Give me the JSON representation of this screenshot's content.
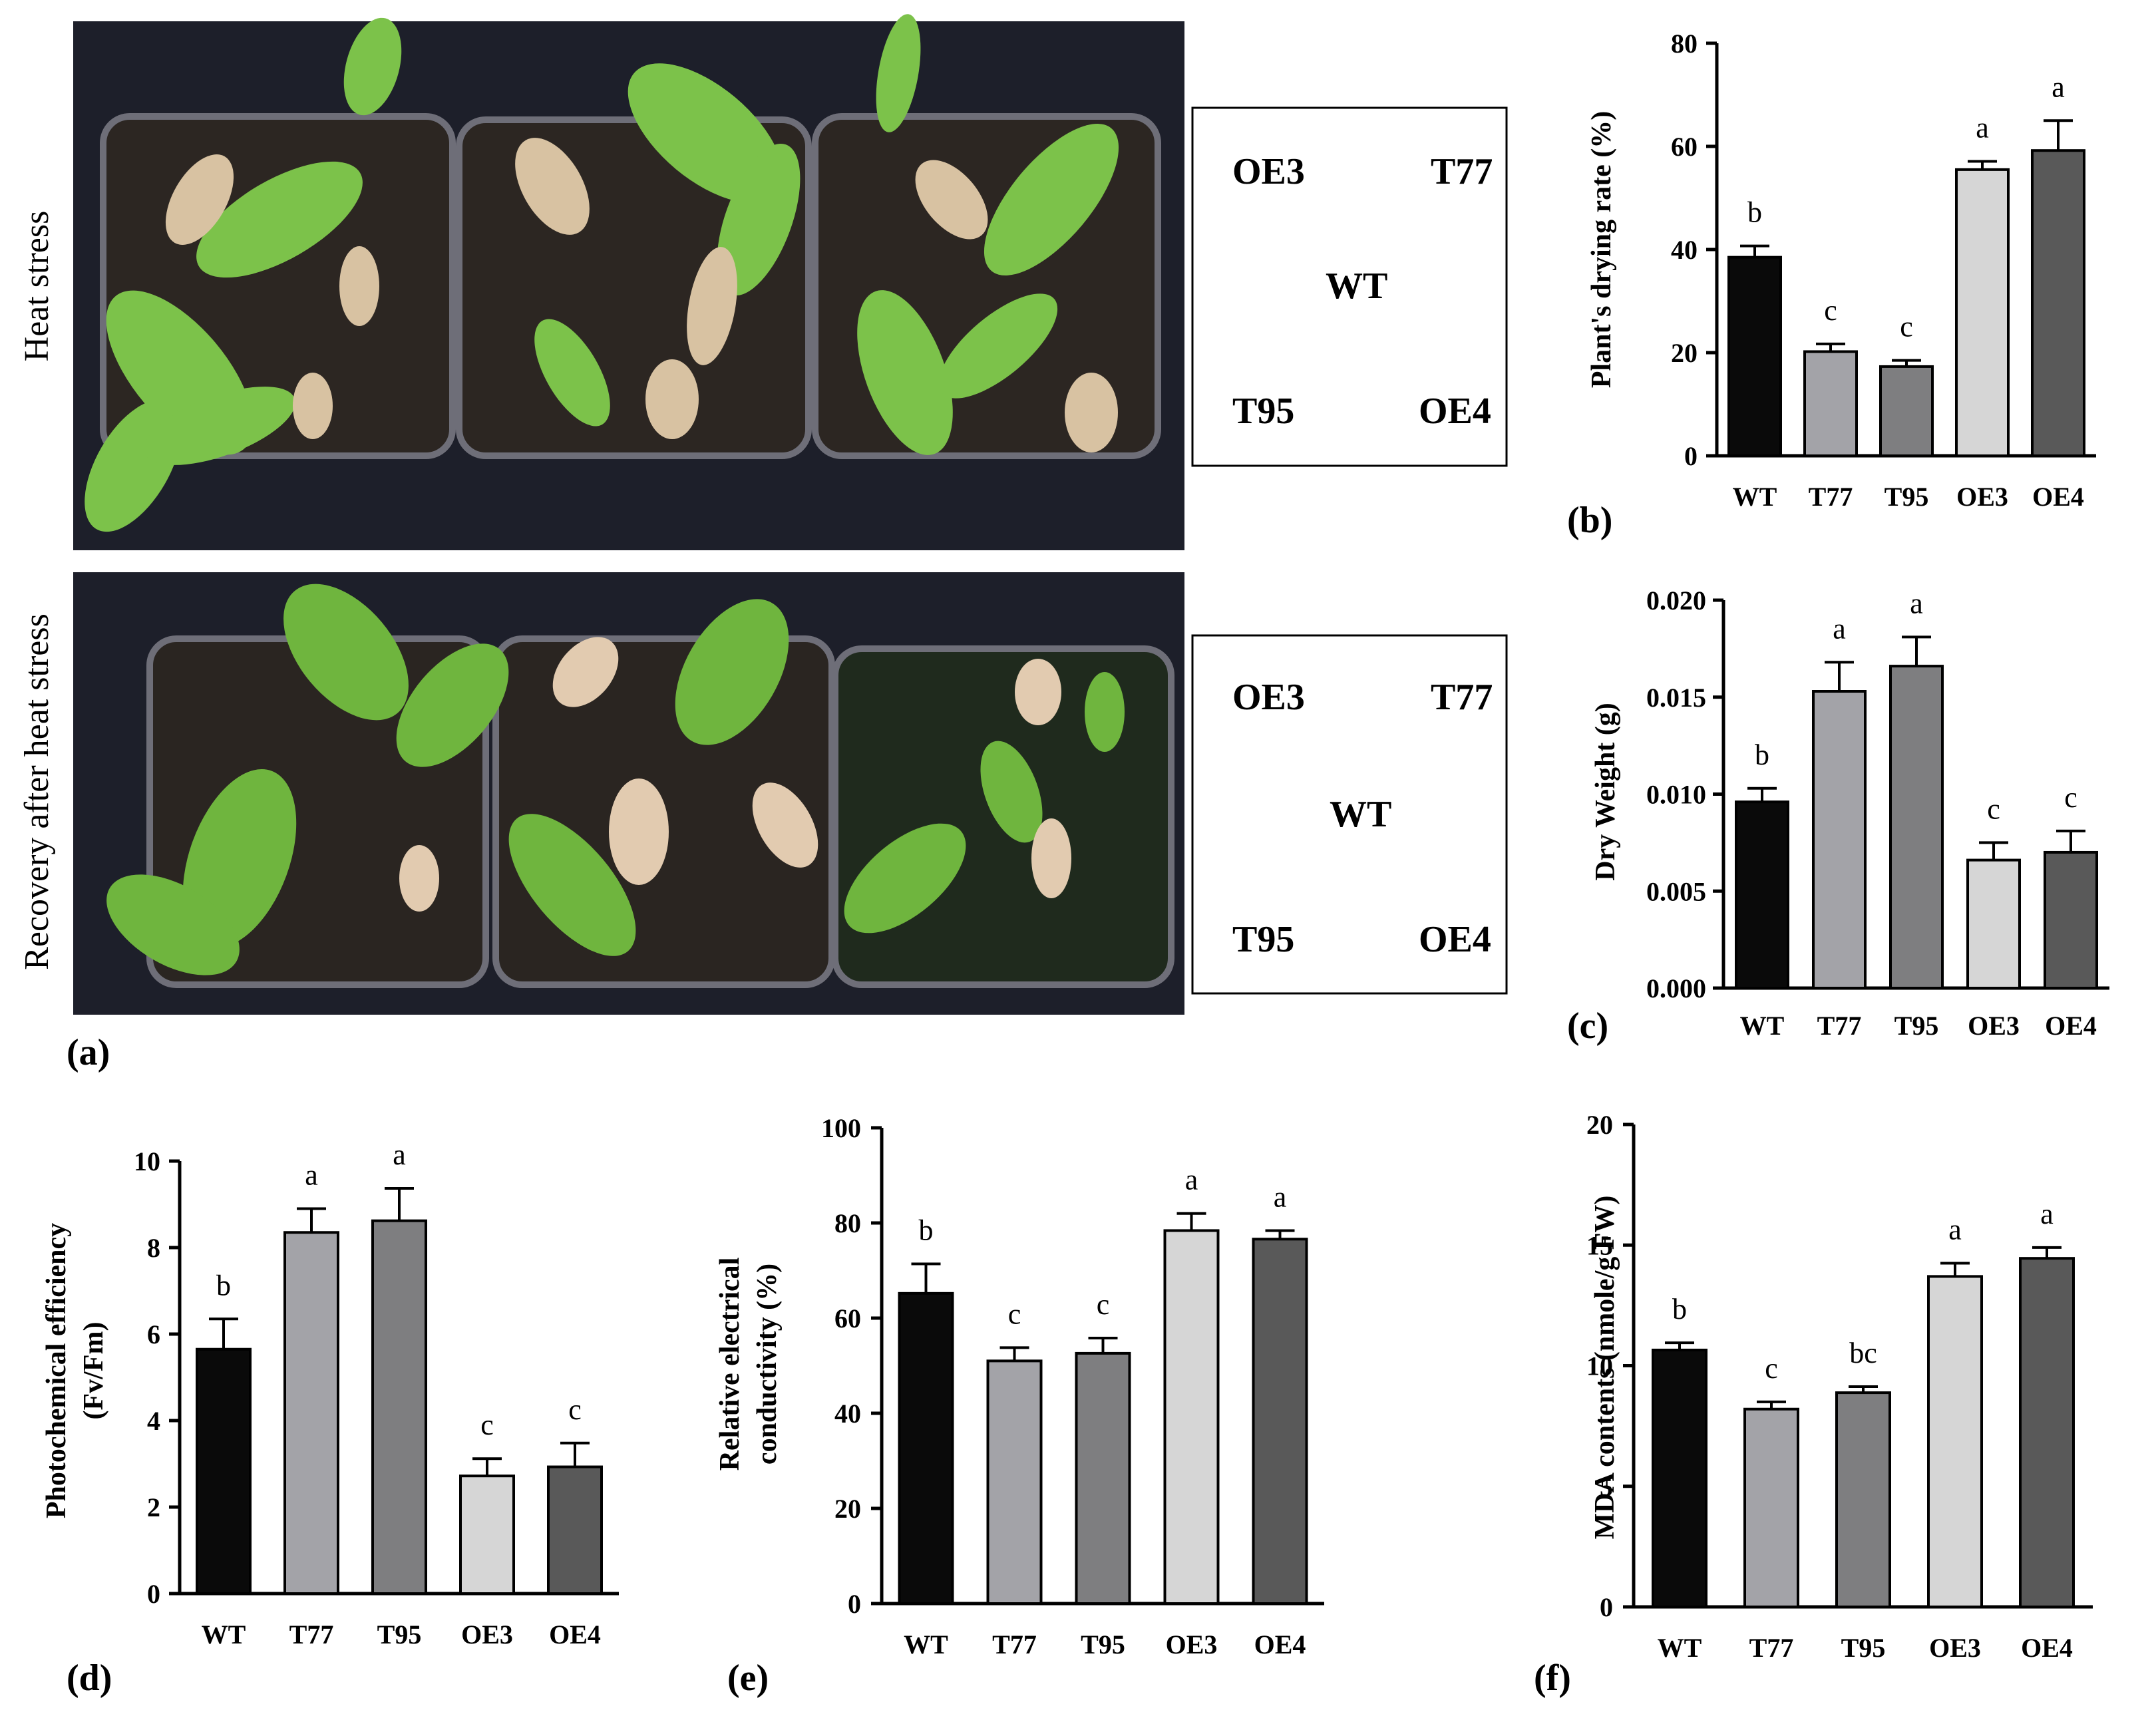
{
  "figure": {
    "photo_top_label": "Heat stress",
    "photo_bottom_label": "Recovery after heat stress",
    "panel_a": "(a)",
    "key_top": {
      "ul": "OE3",
      "ur": "T77",
      "c": "WT",
      "ll": "T95",
      "lr": "OE4"
    },
    "key_bottom": {
      "ul": "OE3",
      "ur": "T77",
      "c": "WT",
      "ll": "T95",
      "lr": "OE4"
    }
  },
  "colors": {
    "WT": "#0a0a0a",
    "T77": "#a3a3a8",
    "T95": "#7e7e80",
    "OE3": "#d6d6d6",
    "OE4": "#595959",
    "background_photo": "#1d1f2a",
    "soil": "#2a2420",
    "leaf": "#7cc24a",
    "dry_leaf": "#d8c2a2"
  },
  "chart_data": [
    {
      "id": "b",
      "type": "bar",
      "panel": "(b)",
      "categories": [
        "WT",
        "T77",
        "T95",
        "OE3",
        "OE4"
      ],
      "values": [
        38.5,
        20.2,
        17.3,
        55.5,
        59.2
      ],
      "errors": [
        2.2,
        1.5,
        1.2,
        1.6,
        5.8
      ],
      "letters": [
        "b",
        "c",
        "c",
        "a",
        "a"
      ],
      "ylabel": "Plant's drying rate (%)",
      "ylim": [
        0,
        80
      ],
      "ticks": [
        "0",
        "20",
        "40",
        "60",
        "80"
      ]
    },
    {
      "id": "c",
      "type": "bar",
      "panel": "(c)",
      "categories": [
        "WT",
        "T77",
        "T95",
        "OE3",
        "OE4"
      ],
      "values": [
        0.0096,
        0.0153,
        0.0166,
        0.0066,
        0.007
      ],
      "errors": [
        0.0007,
        0.0015,
        0.0015,
        0.0009,
        0.0011
      ],
      "letters": [
        "b",
        "a",
        "a",
        "c",
        "c"
      ],
      "ylabel": "Dry Weight (g)",
      "ylim": [
        0,
        0.02
      ],
      "ticks": [
        "0.000",
        "0.005",
        "0.010",
        "0.015",
        "0.020"
      ]
    },
    {
      "id": "d",
      "type": "bar",
      "panel": "(d)",
      "categories": [
        "WT",
        "T77",
        "T95",
        "OE3",
        "OE4"
      ],
      "values": [
        5.65,
        8.35,
        8.62,
        2.72,
        2.93
      ],
      "errors": [
        0.7,
        0.55,
        0.75,
        0.4,
        0.55
      ],
      "letters": [
        "b",
        "a",
        "a",
        "c",
        "c"
      ],
      "ylabel": [
        "Photochemical efficiency",
        "(Fv/Fm)"
      ],
      "ylim": [
        0,
        10
      ],
      "ticks": [
        "0",
        "2",
        "4",
        "6",
        "8",
        "10"
      ]
    },
    {
      "id": "e",
      "type": "bar",
      "panel": "(e)",
      "categories": [
        "WT",
        "T77",
        "T95",
        "OE3",
        "OE4"
      ],
      "values": [
        65.2,
        51.0,
        52.6,
        78.4,
        76.6
      ],
      "errors": [
        6.2,
        2.8,
        3.2,
        3.6,
        1.8
      ],
      "letters": [
        "b",
        "c",
        "c",
        "a",
        "a"
      ],
      "ylabel": [
        "Relative electrical",
        "conductivity (%)"
      ],
      "ylim": [
        0,
        100
      ],
      "ticks": [
        "0",
        "20",
        "40",
        "60",
        "80",
        "100"
      ]
    },
    {
      "id": "f",
      "type": "bar",
      "panel": "(f)",
      "categories": [
        "WT",
        "T77",
        "T95",
        "OE3",
        "OE4"
      ],
      "values": [
        10.65,
        8.2,
        8.88,
        13.7,
        14.45
      ],
      "errors": [
        0.3,
        0.3,
        0.25,
        0.55,
        0.45
      ],
      "letters": [
        "b",
        "c",
        "bc",
        "a",
        "a"
      ],
      "ylabel": "MDA contents (nmole/g FW)",
      "ylim": [
        0,
        20
      ],
      "ticks": [
        "0",
        "5",
        "10",
        "15",
        "20"
      ]
    }
  ]
}
